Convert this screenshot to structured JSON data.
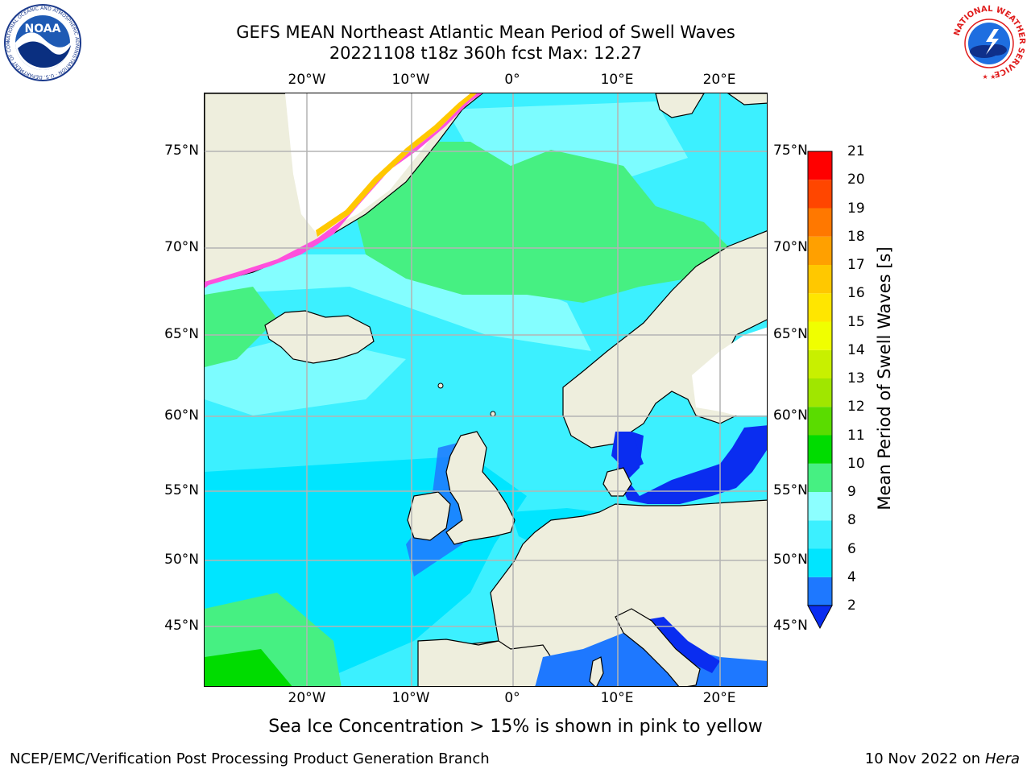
{
  "title": {
    "line1": "GEFS MEAN Northeast Atlantic Mean Period of Swell Waves",
    "line2": "20221108 t18z 360h fcst   Max: 12.27"
  },
  "axes": {
    "lon_ticks": [
      "20°W",
      "10°W",
      "0°",
      "10°E",
      "20°E"
    ],
    "lat_ticks": [
      "75°N",
      "70°N",
      "65°N",
      "60°N",
      "55°N",
      "50°N",
      "45°N"
    ]
  },
  "colorbar": {
    "label": "Mean Period of Swell Waves [s]",
    "ticks": [
      "2",
      "4",
      "6",
      "8",
      "9",
      "10",
      "11",
      "12",
      "13",
      "14",
      "15",
      "16",
      "17",
      "18",
      "19",
      "20",
      "21"
    ],
    "colors": [
      "#0a2df0",
      "#1e78ff",
      "#00e5ff",
      "#3cf0ff",
      "#8cffff",
      "#46f082",
      "#00dc00",
      "#5adc00",
      "#a0e600",
      "#c8f000",
      "#f0ff00",
      "#ffe600",
      "#ffc800",
      "#ffa000",
      "#ff7800",
      "#ff4600",
      "#ff0000"
    ]
  },
  "logos": {
    "noaa_text": "NOAA",
    "noaa_ring": "NATIONAL OCEANIC AND ATMOSPHERIC ADMINISTRATION · U.S. DEPARTMENT OF COMMERCE",
    "nws_ring": "NATIONAL WEATHER SERVICE"
  },
  "map": {
    "regions": [
      "Greenland",
      "Iceland",
      "British Isles",
      "Scandinavia",
      "Continental Europe",
      "Baltic Sea",
      "Mediterranean Sea",
      "North Sea"
    ],
    "colors": {
      "land": "#eeeedd",
      "ocean_6_8": "#3cf0ff",
      "ocean_8_9": "#8cffff",
      "ocean_9_10": "#46f082",
      "ocean_4_6": "#00e5ff",
      "ocean_2_4": "#1e78ff",
      "below_2": "#0a2df0",
      "grid": "#b4b4b4",
      "ice": "#ff50dc"
    }
  },
  "note": "Sea Ice Concentration > 15% is shown in pink to yellow",
  "footer": {
    "left": "NCEP/EMC/Verification Post Processing Product Generation Branch",
    "right_date": "10 Nov 2022 on",
    "right_host": "Hera"
  }
}
